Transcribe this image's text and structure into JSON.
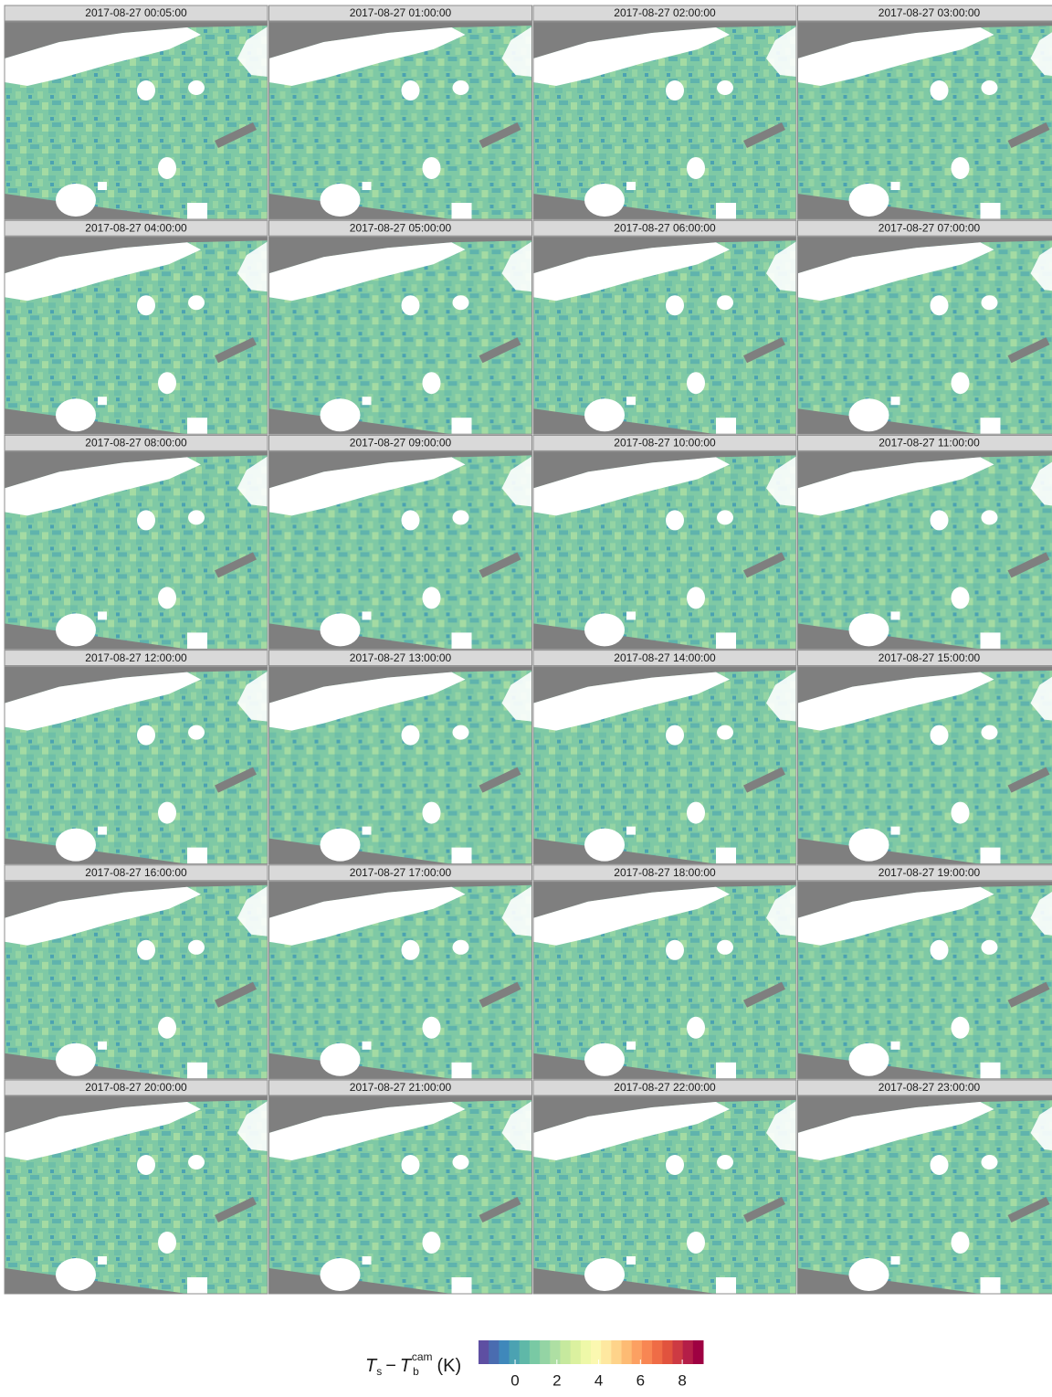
{
  "chart_data": {
    "type": "heatmap",
    "panels": [
      "2017-08-27 00:05:00",
      "2017-08-27 01:00:00",
      "2017-08-27 02:00:00",
      "2017-08-27 03:00:00",
      "2017-08-27 04:00:00",
      "2017-08-27 05:00:00",
      "2017-08-27 06:00:00",
      "2017-08-27 07:00:00",
      "2017-08-27 08:00:00",
      "2017-08-27 09:00:00",
      "2017-08-27 10:00:00",
      "2017-08-27 11:00:00",
      "2017-08-27 12:00:00",
      "2017-08-27 13:00:00",
      "2017-08-27 14:00:00",
      "2017-08-27 15:00:00",
      "2017-08-27 16:00:00",
      "2017-08-27 17:00:00",
      "2017-08-27 18:00:00",
      "2017-08-27 19:00:00",
      "2017-08-27 20:00:00",
      "2017-08-27 21:00:00",
      "2017-08-27 22:00:00",
      "2017-08-27 23:00:00"
    ],
    "legend": {
      "symbol1": "T",
      "sub1": "s",
      "op": "−",
      "symbol2": "T",
      "sub2": "b",
      "sup2": "cam",
      "unit": "(K)"
    },
    "colorbar": {
      "lim": [
        -1.75,
        9
      ],
      "ticks": [
        0,
        2,
        4,
        6,
        8
      ],
      "colors": [
        "#5e4fa2",
        "#4a6cb0",
        "#3f88bb",
        "#4ba2b2",
        "#5fb8a8",
        "#79c9a4",
        "#94d4a4",
        "#aedfa3",
        "#c6e99e",
        "#dbf19f",
        "#eef8a8",
        "#fbf8b0",
        "#fee8a0",
        "#fed38a",
        "#fdbb74",
        "#fca062",
        "#f88653",
        "#ef6c46",
        "#e1533e",
        "#cd3a43",
        "#b41e48",
        "#9e0142"
      ]
    }
  }
}
